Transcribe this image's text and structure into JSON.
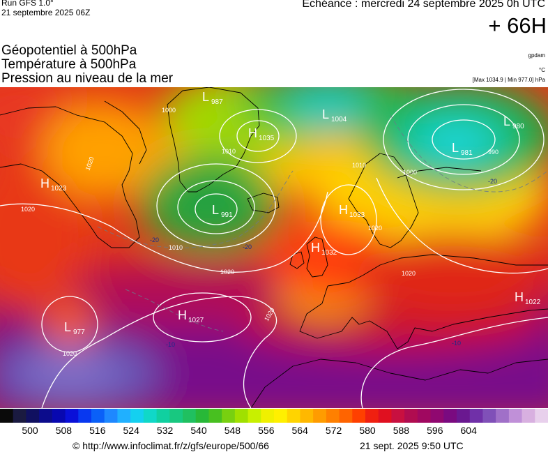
{
  "header": {
    "run_title": "Run GFS 1.0°",
    "run_date": "21 septembre 2025 06Z",
    "echeance": "Echéance : mercredi 24 septembre 2025 0h UTC",
    "lead_time": "+ 66H"
  },
  "parameters": [
    "Géopotentiel à 500hPa",
    "Température à 500hPa",
    "Pression au niveau de la mer"
  ],
  "units": {
    "geopotential": "gpdam",
    "temperature": "°C",
    "minmax": "[Max 1034.9 | Min 977.0] hPa"
  },
  "pressure_centers": [
    {
      "type": "L",
      "value": "987"
    },
    {
      "type": "L",
      "value": "1004"
    },
    {
      "type": "H",
      "value": "1035"
    },
    {
      "type": "L",
      "value": "980"
    },
    {
      "type": "L",
      "value": "981"
    },
    {
      "type": "H",
      "value": "1023"
    },
    {
      "type": "L",
      "value": "991"
    },
    {
      "type": "H",
      "value": "1033"
    },
    {
      "type": "H",
      "value": "1032"
    },
    {
      "type": "H",
      "value": "1027"
    },
    {
      "type": "L",
      "value": "977"
    },
    {
      "type": "H",
      "value": "1022"
    }
  ],
  "contour_labels": [
    "1020",
    "1020",
    "1010",
    "1000",
    "1010",
    "1020",
    "1020",
    "1020",
    "1020",
    "1010",
    "1000",
    "990",
    "1020"
  ],
  "temperature_labels": [
    "-20",
    "-20",
    "-20",
    "-10",
    "-10"
  ],
  "colorbar": {
    "colors": [
      "#0a0a0a",
      "#1a1a40",
      "#101060",
      "#0c0c8c",
      "#0808b0",
      "#0a10d8",
      "#0838f0",
      "#0a60f8",
      "#1e88ff",
      "#20b0ff",
      "#14d0f0",
      "#10d8c8",
      "#10d0a0",
      "#18c880",
      "#20c060",
      "#28b838",
      "#48c020",
      "#78d010",
      "#a0e000",
      "#c8f000",
      "#f0f000",
      "#fff000",
      "#ffd400",
      "#ffb800",
      "#ff9c00",
      "#ff8000",
      "#ff6400",
      "#ff4000",
      "#f02010",
      "#e01020",
      "#c81040",
      "#b00c50",
      "#a00860",
      "#900870",
      "#7a0a80",
      "#6a1890",
      "#7030a8",
      "#8050b8",
      "#a070c8",
      "#c090d8",
      "#d8b0e0",
      "#e8d0ec"
    ],
    "tick_values": [
      500,
      508,
      516,
      524,
      532,
      540,
      548,
      556,
      564,
      572,
      580,
      588,
      596,
      604
    ]
  },
  "footer": {
    "copyright": "© http://www.infoclimat.fr/z/gfs/europe/500/66",
    "timestamp": "21 sept. 2025  9:50 UTC"
  }
}
